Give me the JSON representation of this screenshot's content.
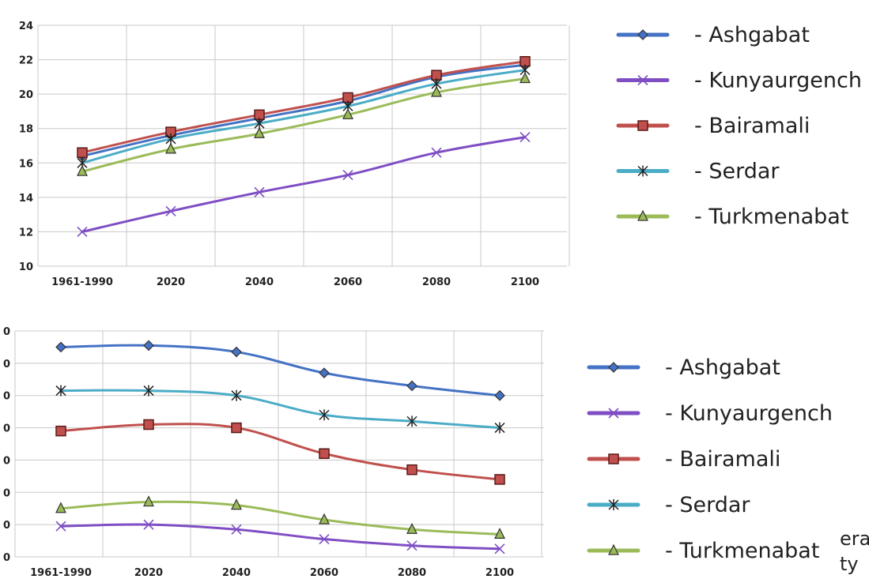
{
  "chart_data": [
    {
      "type": "line",
      "x": [
        "1961-1990",
        "2020",
        "2040",
        "2060",
        "2080",
        "2100"
      ],
      "ylim": [
        10,
        24
      ],
      "yticks": [
        "10",
        "12",
        "14",
        "16",
        "18",
        "20",
        "22",
        "24"
      ],
      "grid": true,
      "legend_placement": "right",
      "series": [
        {
          "name": "- Ashgabat",
          "color": "#4472c4",
          "marker": "diamond",
          "values": [
            16.4,
            17.6,
            18.6,
            19.6,
            21.0,
            21.7
          ]
        },
        {
          "name": "- Kunyaurgench",
          "color": "#7f4ec4",
          "marker": "x",
          "values": [
            12.0,
            13.2,
            14.3,
            15.3,
            16.6,
            17.5
          ]
        },
        {
          "name": "- Bairamali",
          "color": "#c0504d",
          "marker": "square",
          "values": [
            16.6,
            17.8,
            18.8,
            19.8,
            21.1,
            21.9
          ]
        },
        {
          "name": "- Serdar",
          "color": "#4bacc6",
          "marker": "star",
          "values": [
            16.0,
            17.4,
            18.3,
            19.3,
            20.6,
            21.4
          ]
        },
        {
          "name": "- Turkmenabat",
          "color": "#9bbb59",
          "marker": "triangle",
          "values": [
            15.5,
            16.8,
            17.7,
            18.8,
            20.1,
            20.9
          ]
        }
      ]
    },
    {
      "type": "line",
      "x": [
        "1961-1990",
        "2020",
        "2040",
        "2060",
        "2080",
        "2100"
      ],
      "ylim": [
        0,
        7
      ],
      "yticks": [
        "0",
        "0",
        "0",
        "0",
        "0",
        "0",
        "0",
        "0"
      ],
      "grid": true,
      "legend_placement": "right",
      "series": [
        {
          "name": "- Ashgabat",
          "color": "#4472c4",
          "marker": "diamond",
          "values": [
            6.5,
            6.55,
            6.35,
            5.7,
            5.3,
            5.0
          ]
        },
        {
          "name": "- Kunyaurgench",
          "color": "#7f4ec4",
          "marker": "x",
          "values": [
            0.95,
            1.0,
            0.85,
            0.55,
            0.35,
            0.25
          ]
        },
        {
          "name": "- Bairamali",
          "color": "#c0504d",
          "marker": "square",
          "values": [
            3.9,
            4.1,
            4.0,
            3.2,
            2.7,
            2.4
          ]
        },
        {
          "name": "- Serdar",
          "color": "#4bacc6",
          "marker": "star",
          "values": [
            5.15,
            5.15,
            5.0,
            4.4,
            4.2,
            4.0
          ]
        },
        {
          "name": "- Turkmenabat",
          "color": "#9bbb59",
          "marker": "triangle",
          "values": [
            1.5,
            1.7,
            1.6,
            1.15,
            0.85,
            0.7
          ]
        }
      ]
    }
  ],
  "partial_text": {
    "line1": "era",
    "line2": "ty"
  }
}
